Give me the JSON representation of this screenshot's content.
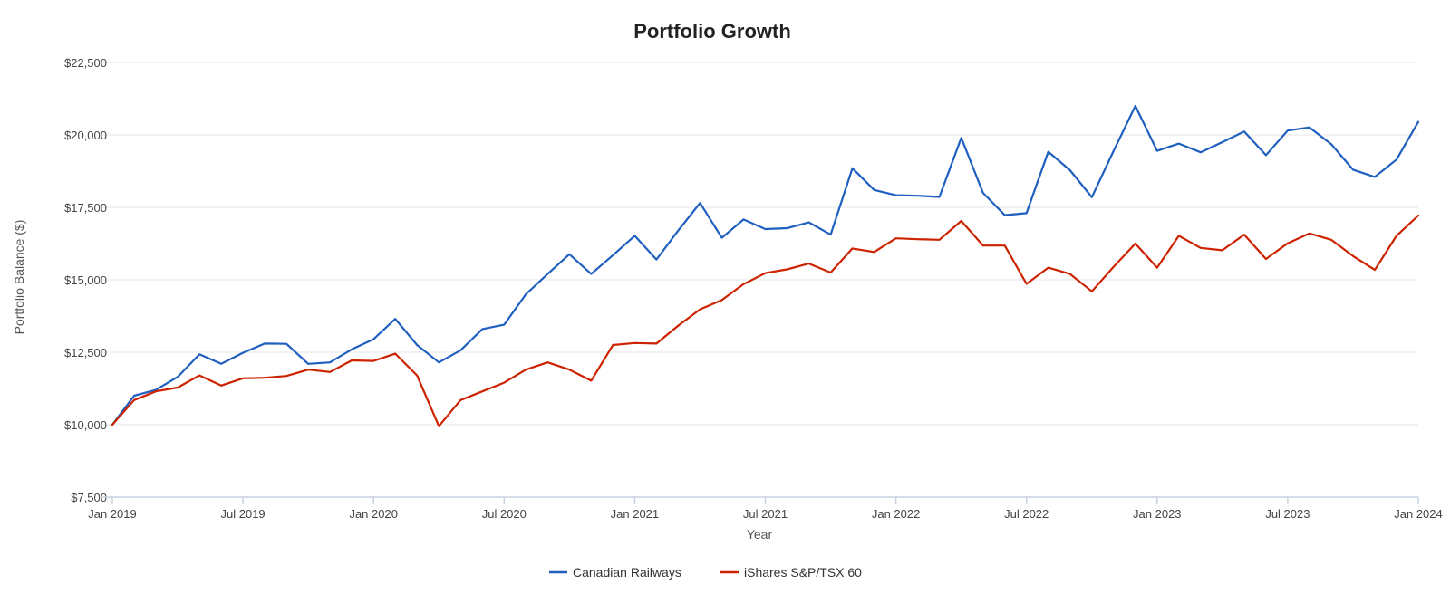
{
  "chart_data": {
    "type": "line",
    "title": "Portfolio Growth",
    "xlabel": "Year",
    "ylabel": "Portfolio Balance ($)",
    "ylim": [
      7500,
      22500
    ],
    "ytick_values": [
      7500,
      10000,
      12500,
      15000,
      17500,
      20000,
      22500
    ],
    "ytick_labels": [
      "$7,500",
      "$10,000",
      "$12,500",
      "$15,000",
      "$17,500",
      "$20,000",
      "$22,500"
    ],
    "xlim": [
      0,
      60
    ],
    "xtick_values": [
      0,
      6,
      12,
      18,
      24,
      30,
      36,
      42,
      48,
      54,
      60
    ],
    "xtick_labels": [
      "Jan 2019",
      "Jul 2019",
      "Jan 2020",
      "Jul 2020",
      "Jan 2021",
      "Jul 2021",
      "Jan 2022",
      "Jul 2022",
      "Jan 2023",
      "Jul 2023",
      "Jan 2024"
    ],
    "grid": true,
    "legend_position": "bottom-center",
    "x": [
      0,
      1,
      2,
      3,
      4,
      5,
      6,
      7,
      8,
      9,
      10,
      11,
      12,
      13,
      14,
      15,
      16,
      17,
      18,
      19,
      20,
      21,
      22,
      23,
      24,
      25,
      26,
      27,
      28,
      29,
      30,
      31,
      32,
      33,
      34,
      35,
      36,
      37,
      38,
      39,
      40,
      41,
      42,
      43,
      44,
      45,
      46,
      47,
      48,
      49,
      50,
      51,
      52,
      53,
      54,
      55,
      56,
      57,
      58,
      59,
      60
    ],
    "series": [
      {
        "name": "Canadian Railways",
        "color": "#1f5fbf",
        "values": [
          10000,
          11000,
          11200,
          11650,
          12430,
          12100,
          12480,
          12800,
          12790,
          12100,
          12150,
          12600,
          12950,
          13650,
          12750,
          12150,
          12570,
          13300,
          13450,
          14500,
          15200,
          15880,
          15200,
          15850,
          16520,
          15700,
          16700,
          17650,
          16450,
          17080,
          16750,
          16780,
          16980,
          16560,
          18850,
          18100,
          17920,
          17900,
          17860,
          19900,
          18000,
          17230,
          17300,
          19420,
          18780,
          17850,
          19450,
          21000,
          19450,
          19700,
          19400,
          19750,
          20120,
          19300,
          20150,
          20260,
          19680,
          18800,
          18550,
          19150,
          20450
        ]
      },
      {
        "name": "iShares S&P/TSX 60",
        "color": "#cc2200",
        "values": [
          10000,
          10850,
          11150,
          11280,
          11700,
          11350,
          11600,
          11620,
          11680,
          11900,
          11820,
          12220,
          12200,
          12450,
          11700,
          9950,
          10850,
          11150,
          11450,
          11900,
          12150,
          11900,
          11520,
          12750,
          12820,
          12800,
          13420,
          13980,
          14300,
          14850,
          15230,
          15360,
          15560,
          15250,
          16080,
          15960,
          16430,
          16400,
          16380,
          17030,
          16180,
          16180,
          14860,
          15420,
          15200,
          14600,
          15450,
          16250,
          15420,
          16520,
          16100,
          16020,
          16560,
          15720,
          16260,
          16600,
          16380,
          15820,
          15340,
          16520,
          17220
        ]
      }
    ]
  }
}
